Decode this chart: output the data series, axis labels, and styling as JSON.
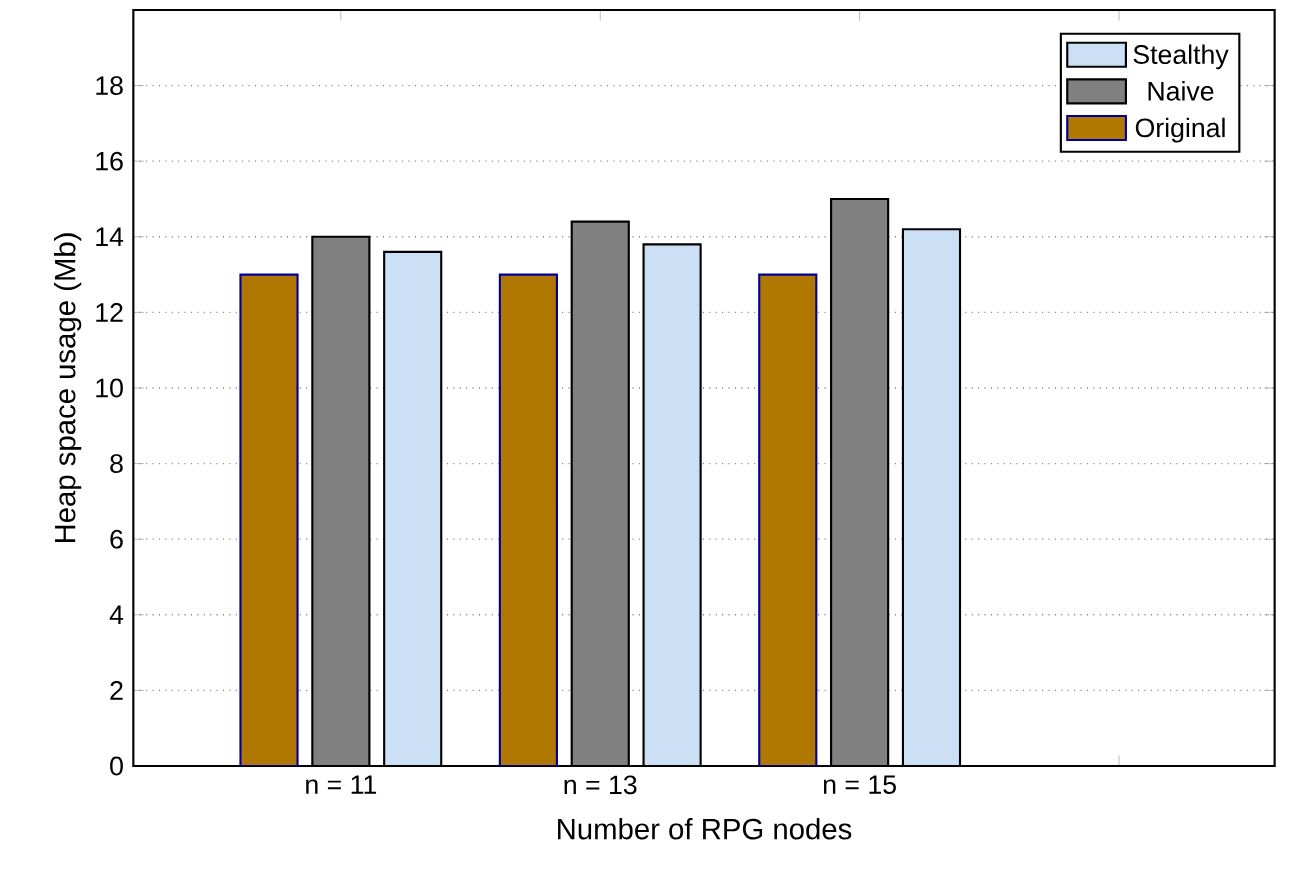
{
  "chart_data": {
    "type": "bar",
    "xlabel": "Number of RPG nodes",
    "ylabel": "Heap space usage (Mb)",
    "categories": [
      "n = 11",
      "n = 13",
      "n = 15",
      null
    ],
    "series": [
      {
        "name": "Original",
        "color": "#b07800",
        "values": [
          13,
          13,
          13,
          null
        ]
      },
      {
        "name": "Naive",
        "color": "#808080",
        "values": [
          14,
          14.4,
          15,
          null
        ]
      },
      {
        "name": "Stealthy",
        "color": "#cce0f5",
        "values": [
          13.6,
          13.8,
          14.2,
          null
        ]
      }
    ],
    "ylim": [
      0,
      20
    ],
    "yticks": [
      0,
      2,
      4,
      6,
      8,
      10,
      12,
      14,
      16,
      18
    ],
    "grid": "y",
    "legend": "top right"
  }
}
